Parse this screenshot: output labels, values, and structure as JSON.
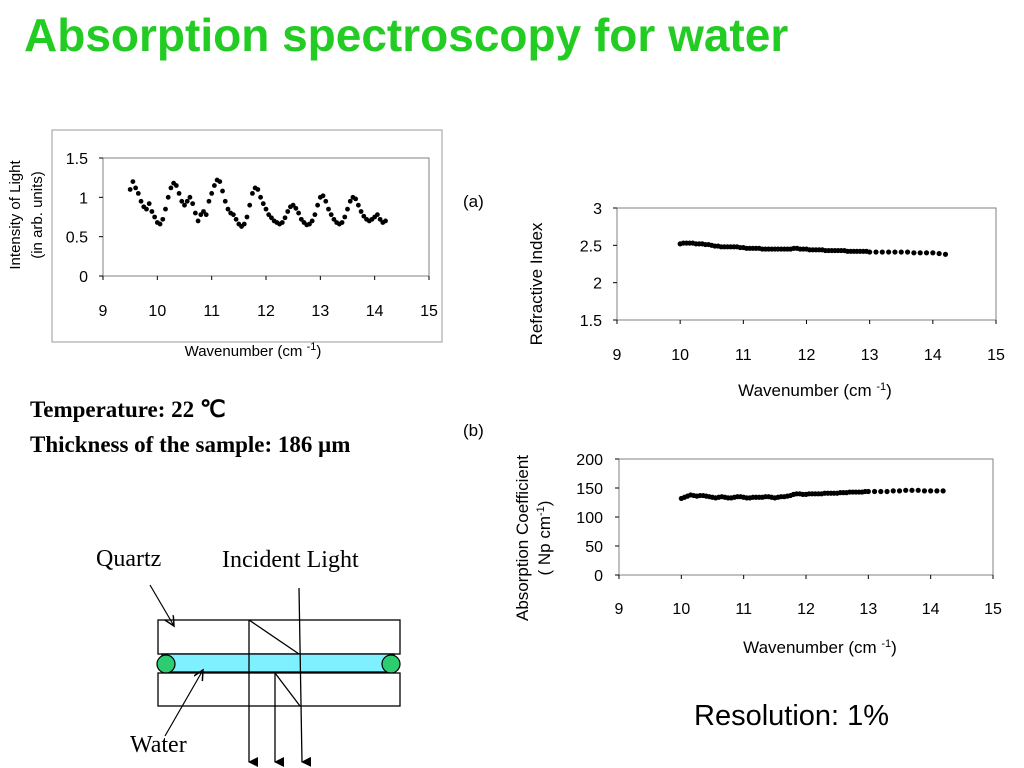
{
  "slide": {
    "title": "Absorption spectroscopy for water",
    "temperature": "Temperature: 22 ℃",
    "thickness": "Thickness of the sample: 186 μm",
    "resolution": "Resolution: 1%"
  },
  "diagram": {
    "quartz_label": "Quartz",
    "incident_label": "Incident Light",
    "water_label": "Water",
    "colors": {
      "water": "#7ff0ff",
      "seal": "#2ecc71"
    }
  },
  "chart_data": [
    {
      "id": "intensity",
      "type": "scatter",
      "title": "",
      "xlabel": "Wavenumber (cm -1)",
      "ylabel_lines": [
        "Intensity of Light",
        "(in arb. units)"
      ],
      "xlim": [
        9,
        15
      ],
      "ylim": [
        0,
        1.5
      ],
      "xticks": [
        "9",
        "10",
        "11",
        "12",
        "13",
        "14",
        "15"
      ],
      "yticks": [
        "0",
        "0.5",
        "1",
        "1.5"
      ],
      "series": [
        {
          "x": [
            9.5,
            9.55,
            9.6,
            9.65,
            9.7,
            9.75,
            9.8,
            9.85,
            9.9,
            9.95,
            10.0,
            10.05,
            10.1,
            10.15,
            10.2,
            10.25,
            10.3,
            10.35,
            10.4,
            10.45,
            10.5,
            10.55,
            10.6,
            10.65,
            10.7,
            10.75,
            10.8,
            10.85,
            10.9,
            10.95,
            11.0,
            11.05,
            11.1,
            11.15,
            11.2,
            11.25,
            11.3,
            11.35,
            11.4,
            11.45,
            11.5,
            11.55,
            11.6,
            11.65,
            11.7,
            11.75,
            11.8,
            11.85,
            11.9,
            11.95,
            12.0,
            12.05,
            12.1,
            12.15,
            12.2,
            12.25,
            12.3,
            12.35,
            12.4,
            12.45,
            12.5,
            12.55,
            12.6,
            12.65,
            12.7,
            12.75,
            12.8,
            12.85,
            12.9,
            12.95,
            13.0,
            13.05,
            13.1,
            13.15,
            13.2,
            13.25,
            13.3,
            13.35,
            13.4,
            13.45,
            13.5,
            13.55,
            13.6,
            13.65,
            13.7,
            13.75,
            13.8,
            13.85,
            13.9,
            13.95,
            14.0,
            14.05,
            14.1,
            14.15,
            14.2
          ],
          "y": [
            1.1,
            1.2,
            1.12,
            1.05,
            0.95,
            0.88,
            0.85,
            0.92,
            0.82,
            0.75,
            0.68,
            0.66,
            0.72,
            0.85,
            1.0,
            1.12,
            1.18,
            1.15,
            1.05,
            0.95,
            0.9,
            0.95,
            1.0,
            0.92,
            0.8,
            0.7,
            0.78,
            0.82,
            0.78,
            0.95,
            1.05,
            1.15,
            1.22,
            1.2,
            1.08,
            0.95,
            0.85,
            0.8,
            0.78,
            0.72,
            0.66,
            0.63,
            0.66,
            0.75,
            0.9,
            1.05,
            1.12,
            1.1,
            1.0,
            0.92,
            0.85,
            0.78,
            0.74,
            0.7,
            0.68,
            0.66,
            0.68,
            0.74,
            0.82,
            0.88,
            0.9,
            0.86,
            0.8,
            0.72,
            0.68,
            0.65,
            0.66,
            0.7,
            0.78,
            0.9,
            1.0,
            1.02,
            0.95,
            0.85,
            0.78,
            0.72,
            0.68,
            0.66,
            0.68,
            0.75,
            0.85,
            0.95,
            1.0,
            0.98,
            0.9,
            0.82,
            0.76,
            0.72,
            0.7,
            0.72,
            0.75,
            0.78,
            0.72,
            0.68,
            0.7
          ]
        }
      ]
    },
    {
      "id": "refractive",
      "panel": "(a)",
      "type": "scatter",
      "title": "",
      "xlabel": "Wavenumber (cm -1)",
      "ylabel": "Refractive Index",
      "xlim": [
        9,
        15
      ],
      "ylim": [
        1.5,
        3
      ],
      "xticks": [
        "9",
        "10",
        "11",
        "12",
        "13",
        "14",
        "15"
      ],
      "yticks": [
        "1.5",
        "2",
        "2.5",
        "3"
      ],
      "series": [
        {
          "x": [
            10.0,
            10.05,
            10.1,
            10.15,
            10.2,
            10.25,
            10.3,
            10.35,
            10.4,
            10.45,
            10.5,
            10.55,
            10.6,
            10.65,
            10.7,
            10.75,
            10.8,
            10.85,
            10.9,
            10.95,
            11.0,
            11.05,
            11.1,
            11.15,
            11.2,
            11.25,
            11.3,
            11.35,
            11.4,
            11.45,
            11.5,
            11.55,
            11.6,
            11.65,
            11.7,
            11.75,
            11.8,
            11.85,
            11.9,
            11.95,
            12.0,
            12.05,
            12.1,
            12.15,
            12.2,
            12.25,
            12.3,
            12.35,
            12.4,
            12.45,
            12.5,
            12.55,
            12.6,
            12.65,
            12.7,
            12.75,
            12.8,
            12.85,
            12.9,
            12.95,
            13.0,
            13.1,
            13.2,
            13.3,
            13.4,
            13.5,
            13.6,
            13.7,
            13.8,
            13.9,
            14.0,
            14.1,
            14.2
          ],
          "y": [
            2.52,
            2.53,
            2.53,
            2.53,
            2.53,
            2.52,
            2.52,
            2.52,
            2.51,
            2.51,
            2.5,
            2.49,
            2.49,
            2.48,
            2.48,
            2.48,
            2.48,
            2.48,
            2.48,
            2.47,
            2.47,
            2.46,
            2.46,
            2.46,
            2.46,
            2.46,
            2.45,
            2.45,
            2.45,
            2.45,
            2.45,
            2.45,
            2.45,
            2.45,
            2.45,
            2.45,
            2.46,
            2.46,
            2.45,
            2.45,
            2.45,
            2.44,
            2.44,
            2.44,
            2.44,
            2.44,
            2.43,
            2.43,
            2.43,
            2.43,
            2.43,
            2.43,
            2.43,
            2.42,
            2.42,
            2.42,
            2.42,
            2.42,
            2.42,
            2.42,
            2.41,
            2.41,
            2.41,
            2.41,
            2.41,
            2.41,
            2.41,
            2.4,
            2.4,
            2.4,
            2.4,
            2.39,
            2.38
          ]
        }
      ]
    },
    {
      "id": "absorption",
      "panel": "(b)",
      "type": "scatter",
      "title": "",
      "xlabel": "Wavenumber (cm -1)",
      "ylabel_lines": [
        "Absorption Coefficient",
        "( Np cm-1)"
      ],
      "xlim": [
        9,
        15
      ],
      "ylim": [
        0,
        200
      ],
      "xticks": [
        "9",
        "10",
        "11",
        "12",
        "13",
        "14",
        "15"
      ],
      "yticks": [
        "0",
        "50",
        "100",
        "150",
        "200"
      ],
      "series": [
        {
          "x": [
            10.0,
            10.05,
            10.1,
            10.15,
            10.2,
            10.25,
            10.3,
            10.35,
            10.4,
            10.45,
            10.5,
            10.55,
            10.6,
            10.65,
            10.7,
            10.75,
            10.8,
            10.85,
            10.9,
            10.95,
            11.0,
            11.05,
            11.1,
            11.15,
            11.2,
            11.25,
            11.3,
            11.35,
            11.4,
            11.45,
            11.5,
            11.55,
            11.6,
            11.65,
            11.7,
            11.75,
            11.8,
            11.85,
            11.9,
            11.95,
            12.0,
            12.05,
            12.1,
            12.15,
            12.2,
            12.25,
            12.3,
            12.35,
            12.4,
            12.45,
            12.5,
            12.55,
            12.6,
            12.65,
            12.7,
            12.75,
            12.8,
            12.85,
            12.9,
            12.95,
            13.0,
            13.1,
            13.2,
            13.3,
            13.4,
            13.5,
            13.6,
            13.7,
            13.8,
            13.9,
            14.0,
            14.1,
            14.2
          ],
          "y": [
            132,
            134,
            136,
            138,
            137,
            136,
            137,
            137,
            136,
            135,
            134,
            133,
            134,
            135,
            134,
            133,
            133,
            134,
            135,
            135,
            134,
            133,
            133,
            134,
            134,
            134,
            134,
            135,
            135,
            134,
            133,
            134,
            135,
            135,
            136,
            137,
            139,
            140,
            140,
            139,
            139,
            140,
            140,
            140,
            140,
            140,
            141,
            141,
            141,
            141,
            141,
            142,
            142,
            142,
            143,
            143,
            143,
            143,
            143,
            144,
            144,
            144,
            144,
            144,
            145,
            145,
            146,
            146,
            146,
            145,
            145,
            145,
            145
          ]
        }
      ]
    }
  ]
}
